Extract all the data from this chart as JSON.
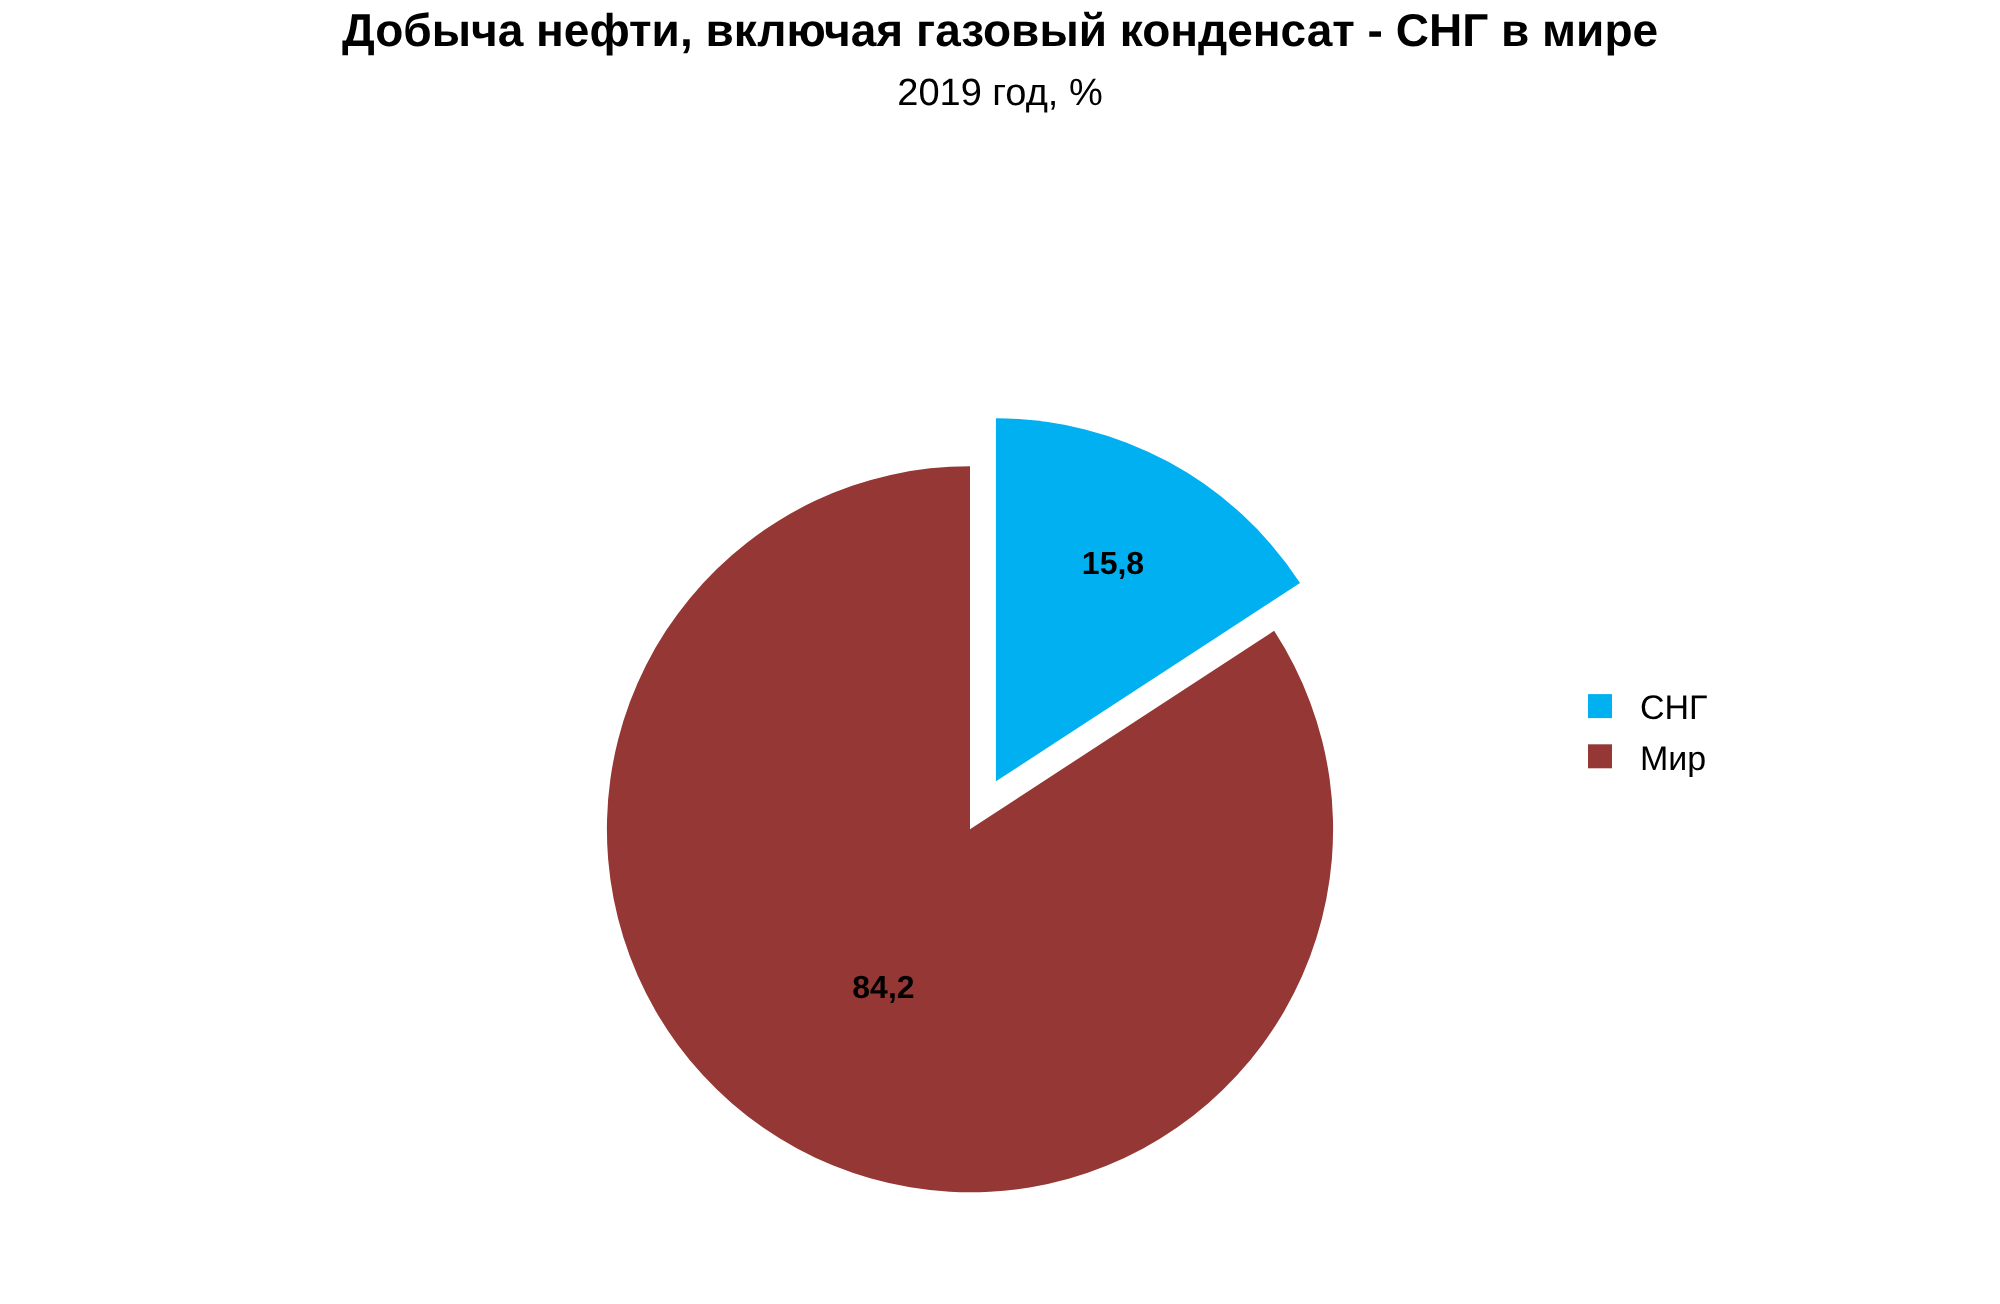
{
  "chart_data": {
    "type": "pie",
    "title": "Добыча нефти, включая газовый конденсат - СНГ в мире",
    "subtitle": "2019 год, %",
    "categories": [
      "СНГ",
      "Мир"
    ],
    "values": [
      15.8,
      84.2
    ],
    "value_labels": [
      "15,8",
      "84,2"
    ],
    "colors": [
      "#00b0f0",
      "#953735"
    ],
    "legend": "right"
  }
}
